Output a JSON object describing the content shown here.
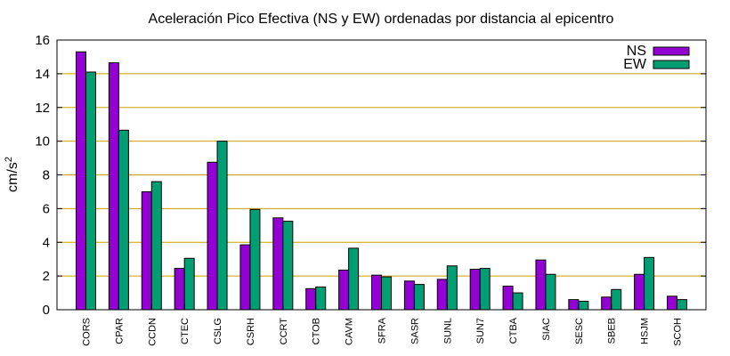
{
  "chart_data": {
    "type": "bar",
    "title": "Aceleración Pico Efectiva (NS y EW) ordenadas por distancia al epicentro",
    "xlabel": "",
    "ylabel": "cm/s",
    "ylabel_superscript": "2",
    "ylim": [
      0,
      16
    ],
    "yticks": [
      "0",
      "2",
      "4",
      "6",
      "8",
      "10",
      "12",
      "14",
      "16"
    ],
    "grid": true,
    "legend_position": "top-right",
    "categories": [
      "CORS",
      "CPAR",
      "CCDN",
      "CTEC",
      "CSLG",
      "CSRH",
      "CCRT",
      "CTOB",
      "CAVM",
      "SFRA",
      "SASR",
      "SUNL",
      "SUN7",
      "CTBA",
      "SIAC",
      "SESC",
      "SBEB",
      "HSJM",
      "SCOH"
    ],
    "series": [
      {
        "name": "NS",
        "color": "#9400d3",
        "values": [
          15.3,
          14.65,
          7.0,
          2.45,
          8.75,
          3.85,
          5.45,
          1.25,
          2.35,
          2.05,
          1.7,
          1.8,
          2.4,
          1.4,
          2.95,
          0.6,
          0.75,
          2.1,
          0.8
        ]
      },
      {
        "name": "EW",
        "color": "#009e73",
        "values": [
          14.1,
          10.65,
          7.6,
          3.05,
          10.0,
          5.95,
          5.25,
          1.35,
          3.65,
          1.95,
          1.5,
          2.6,
          2.45,
          1.0,
          2.1,
          0.5,
          1.2,
          3.1,
          0.6
        ]
      }
    ]
  }
}
